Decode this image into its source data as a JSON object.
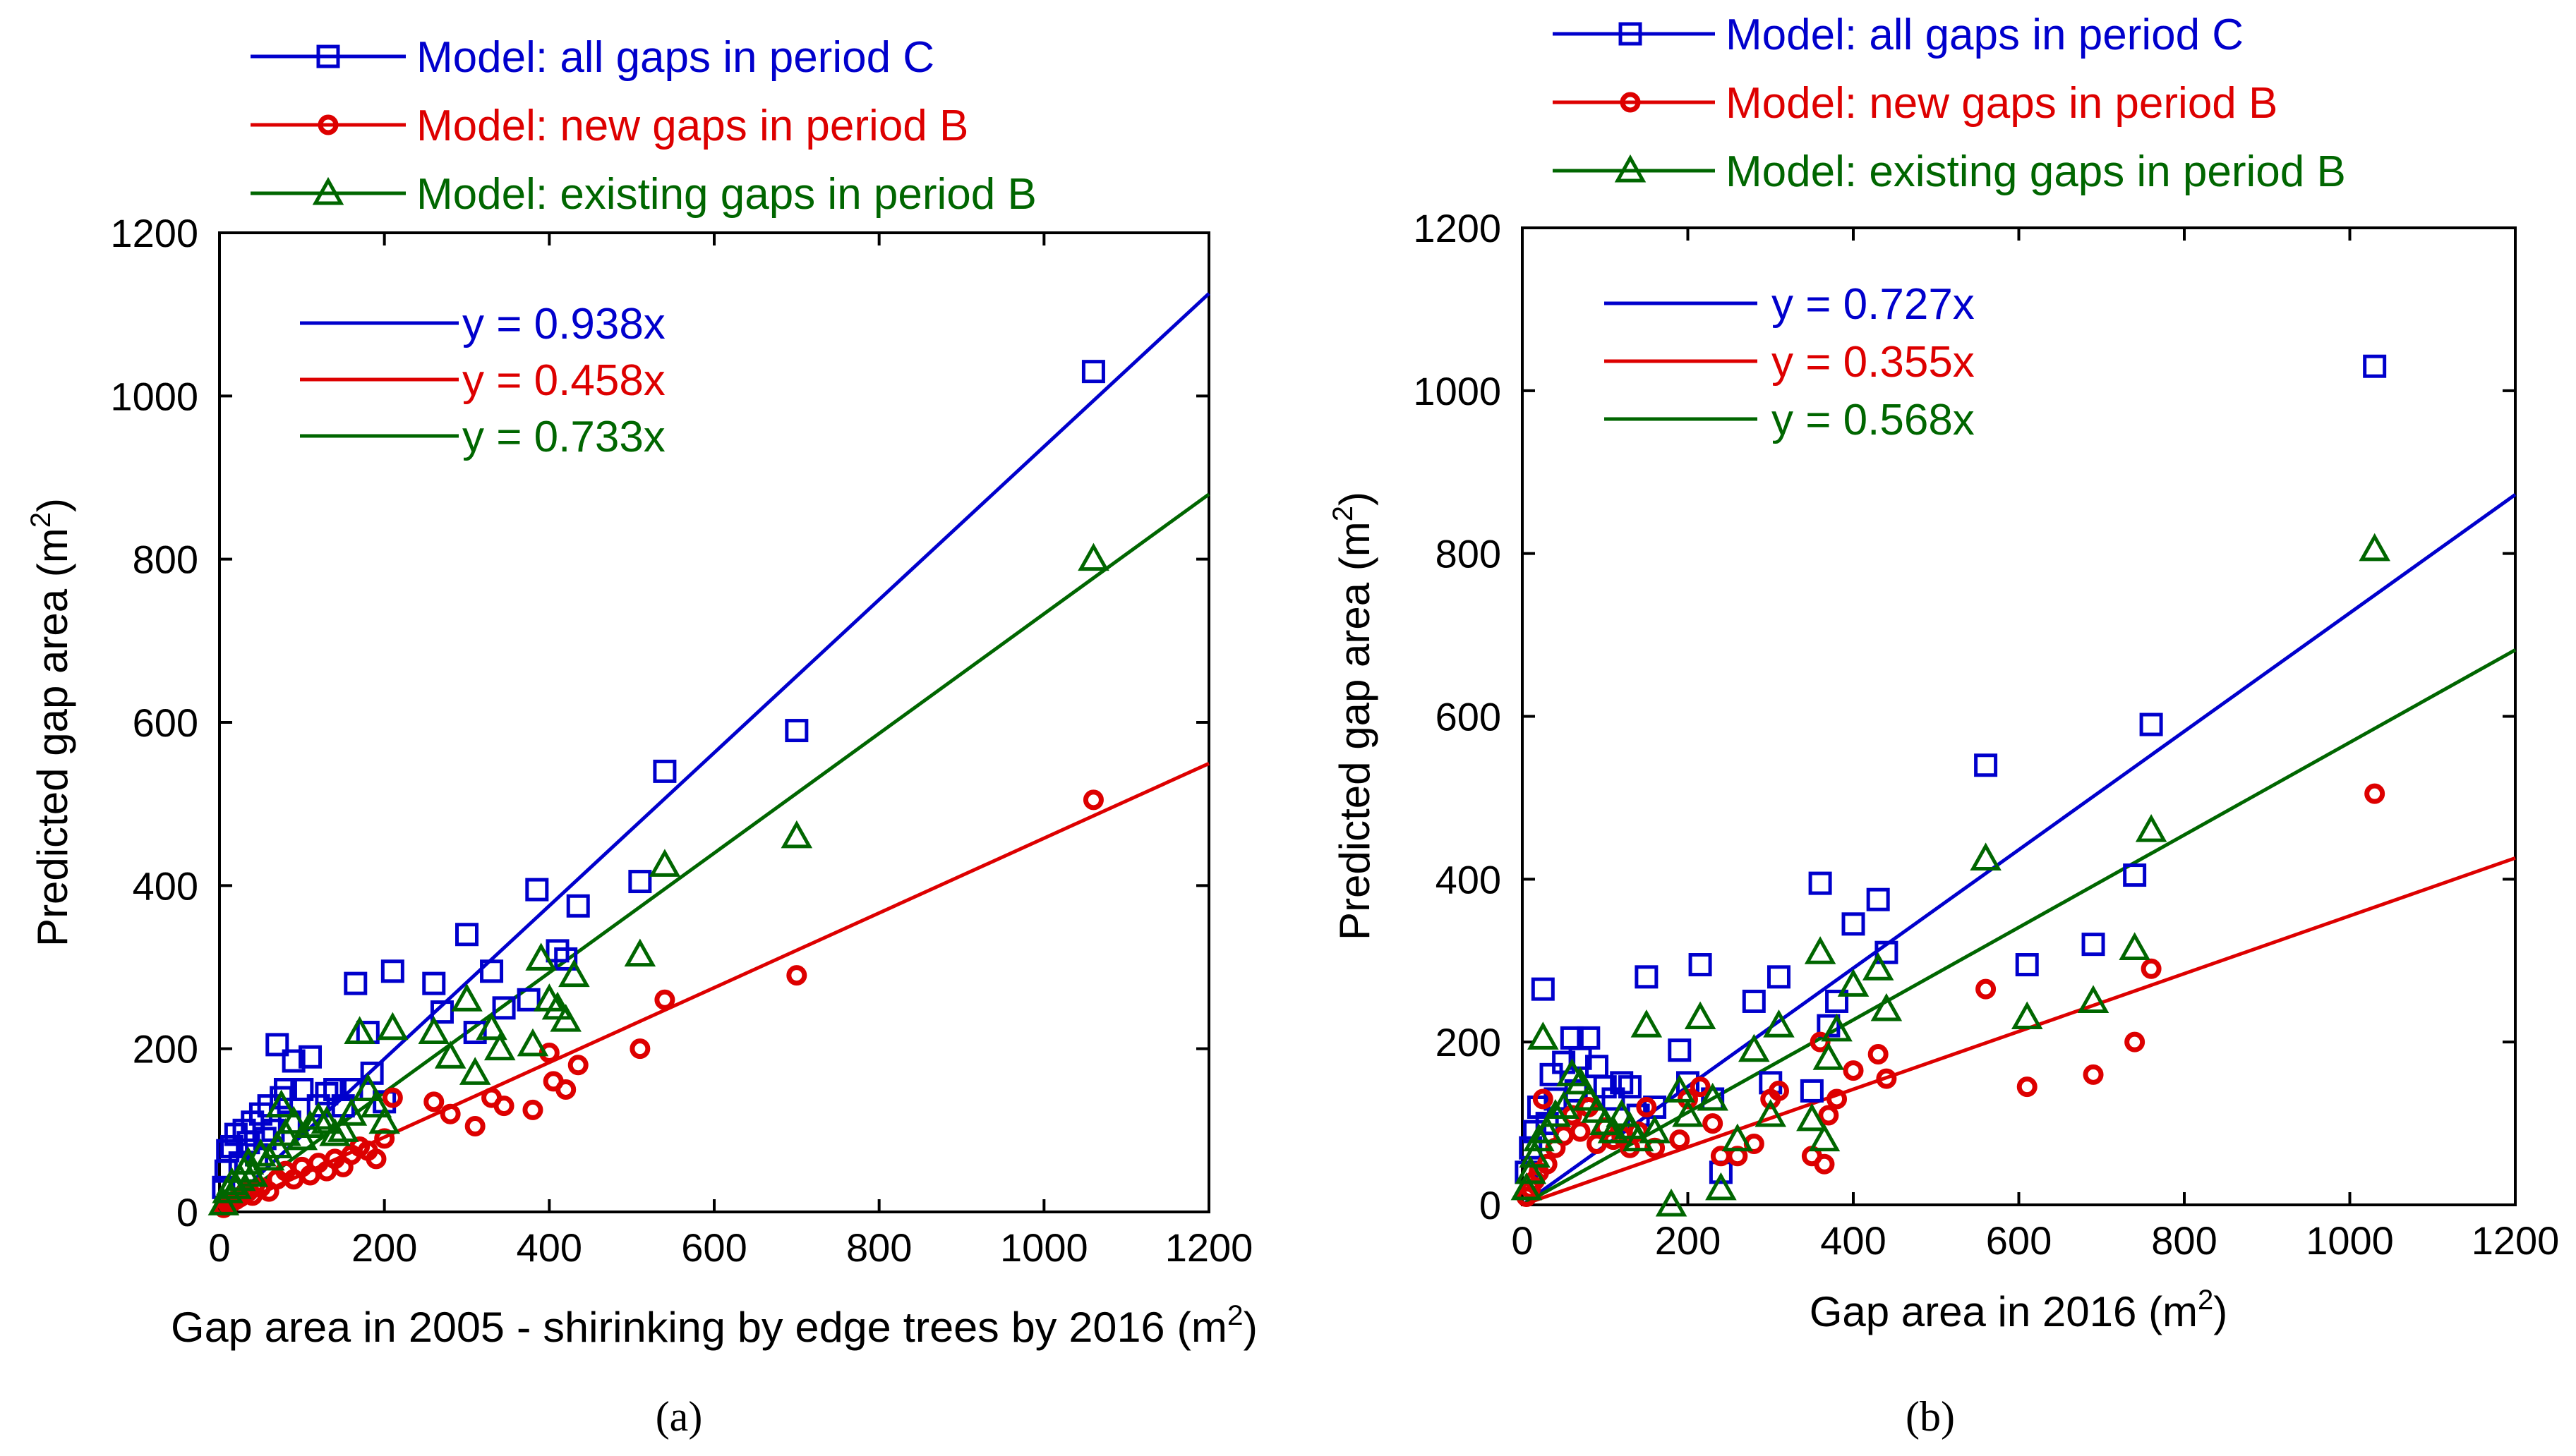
{
  "chart_data": [
    {
      "type": "scatter",
      "panel_label": "(a)",
      "xlabel": "Gap area in 2005 - shirinking by edge trees by 2016 (m",
      "xlabel_sup": "2",
      "xlabel_end": ")",
      "ylabel": "Predicted gap area (m",
      "ylabel_sup": "2",
      "ylabel_end": ")",
      "xlim": [
        0,
        1200
      ],
      "ylim": [
        0,
        1200
      ],
      "xticks": [
        "0",
        "200",
        "400",
        "600",
        "800",
        "1000",
        "1200"
      ],
      "yticks": [
        "0",
        "200",
        "400",
        "600",
        "800",
        "1000",
        "1200"
      ],
      "series": [
        {
          "name": "Model: all gaps in period C",
          "color": "#0000cc",
          "marker": "square",
          "points": [
            [
              5,
              30
            ],
            [
              8,
              50
            ],
            [
              10,
              75
            ],
            [
              15,
              80
            ],
            [
              20,
              95
            ],
            [
              25,
              60
            ],
            [
              30,
              100
            ],
            [
              35,
              85
            ],
            [
              40,
              110
            ],
            [
              45,
              70
            ],
            [
              50,
              120
            ],
            [
              55,
              90
            ],
            [
              60,
              130
            ],
            [
              65,
              100
            ],
            [
              70,
              205
            ],
            [
              75,
              140
            ],
            [
              80,
              150
            ],
            [
              85,
              110
            ],
            [
              90,
              185
            ],
            [
              100,
              150
            ],
            [
              110,
              190
            ],
            [
              120,
              130
            ],
            [
              130,
              145
            ],
            [
              140,
              150
            ],
            [
              150,
              130
            ],
            [
              160,
              150
            ],
            [
              165,
              280
            ],
            [
              180,
              220
            ],
            [
              185,
              170
            ],
            [
              200,
              135
            ],
            [
              210,
              295
            ],
            [
              260,
              280
            ],
            [
              270,
              245
            ],
            [
              300,
              340
            ],
            [
              310,
              220
            ],
            [
              330,
              295
            ],
            [
              345,
              250
            ],
            [
              375,
              260
            ],
            [
              385,
              395
            ],
            [
              410,
              320
            ],
            [
              420,
              310
            ],
            [
              435,
              375
            ],
            [
              510,
              405
            ],
            [
              540,
              540
            ],
            [
              700,
              590
            ],
            [
              1060,
              1030
            ]
          ]
        },
        {
          "name": "Model: new gaps in period B",
          "color": "#dd0000",
          "marker": "circle",
          "points": [
            [
              5,
              5
            ],
            [
              10,
              10
            ],
            [
              15,
              12
            ],
            [
              20,
              15
            ],
            [
              25,
              18
            ],
            [
              30,
              22
            ],
            [
              35,
              25
            ],
            [
              40,
              20
            ],
            [
              50,
              30
            ],
            [
              60,
              25
            ],
            [
              70,
              40
            ],
            [
              80,
              50
            ],
            [
              90,
              40
            ],
            [
              100,
              55
            ],
            [
              110,
              45
            ],
            [
              120,
              60
            ],
            [
              130,
              50
            ],
            [
              140,
              65
            ],
            [
              150,
              55
            ],
            [
              160,
              70
            ],
            [
              170,
              80
            ],
            [
              180,
              75
            ],
            [
              190,
              65
            ],
            [
              200,
              90
            ],
            [
              210,
              140
            ],
            [
              260,
              135
            ],
            [
              280,
              120
            ],
            [
              310,
              105
            ],
            [
              330,
              140
            ],
            [
              345,
              130
            ],
            [
              380,
              125
            ],
            [
              400,
              195
            ],
            [
              405,
              160
            ],
            [
              420,
              150
            ],
            [
              435,
              180
            ],
            [
              510,
              200
            ],
            [
              540,
              260
            ],
            [
              700,
              290
            ],
            [
              1060,
              505
            ]
          ]
        },
        {
          "name": "Model: existing gaps in period B",
          "color": "#006600",
          "marker": "triangle",
          "points": [
            [
              5,
              10
            ],
            [
              10,
              25
            ],
            [
              15,
              35
            ],
            [
              20,
              30
            ],
            [
              25,
              40
            ],
            [
              30,
              50
            ],
            [
              35,
              60
            ],
            [
              40,
              45
            ],
            [
              50,
              70
            ],
            [
              60,
              65
            ],
            [
              70,
              80
            ],
            [
              75,
              130
            ],
            [
              80,
              95
            ],
            [
              90,
              110
            ],
            [
              100,
              90
            ],
            [
              110,
              105
            ],
            [
              120,
              115
            ],
            [
              130,
              110
            ],
            [
              140,
              95
            ],
            [
              150,
              100
            ],
            [
              160,
              120
            ],
            [
              170,
              220
            ],
            [
              180,
              150
            ],
            [
              190,
              130
            ],
            [
              200,
              110
            ],
            [
              210,
              225
            ],
            [
              260,
              220
            ],
            [
              280,
              190
            ],
            [
              300,
              260
            ],
            [
              310,
              170
            ],
            [
              330,
              225
            ],
            [
              340,
              200
            ],
            [
              380,
              205
            ],
            [
              390,
              310
            ],
            [
              400,
              260
            ],
            [
              410,
              250
            ],
            [
              420,
              235
            ],
            [
              430,
              290
            ],
            [
              510,
              315
            ],
            [
              540,
              425
            ],
            [
              700,
              460
            ],
            [
              1060,
              800
            ]
          ]
        }
      ],
      "fits": [
        {
          "label": "y = 0.938x",
          "slope": 0.938,
          "color": "#0000cc"
        },
        {
          "label": "y = 0.458x",
          "slope": 0.458,
          "color": "#dd0000"
        },
        {
          "label": "y = 0.733x",
          "slope": 0.733,
          "color": "#006600"
        }
      ]
    },
    {
      "type": "scatter",
      "panel_label": "(b)",
      "xlabel": "Gap area in 2016 (m",
      "xlabel_sup": "2",
      "xlabel_end": ")",
      "ylabel": "Predicted gap area (m",
      "ylabel_sup": "2",
      "ylabel_end": ")",
      "xlim": [
        0,
        1200
      ],
      "ylim": [
        0,
        1200
      ],
      "xticks": [
        "0",
        "200",
        "400",
        "600",
        "800",
        "1000",
        "1200"
      ],
      "yticks": [
        "0",
        "200",
        "400",
        "600",
        "800",
        "1000",
        "1200"
      ],
      "series": [
        {
          "name": "Model: all gaps in period C",
          "color": "#0000cc",
          "marker": "square",
          "points": [
            [
              5,
              40
            ],
            [
              10,
              70
            ],
            [
              15,
              90
            ],
            [
              20,
              120
            ],
            [
              25,
              265
            ],
            [
              30,
              100
            ],
            [
              35,
              160
            ],
            [
              40,
              130
            ],
            [
              50,
              175
            ],
            [
              60,
              205
            ],
            [
              65,
              140
            ],
            [
              70,
              180
            ],
            [
              80,
              205
            ],
            [
              90,
              170
            ],
            [
              100,
              145
            ],
            [
              110,
              130
            ],
            [
              120,
              150
            ],
            [
              130,
              145
            ],
            [
              140,
              110
            ],
            [
              150,
              280
            ],
            [
              160,
              120
            ],
            [
              190,
              190
            ],
            [
              200,
              150
            ],
            [
              215,
              295
            ],
            [
              230,
              130
            ],
            [
              240,
              40
            ],
            [
              280,
              250
            ],
            [
              300,
              150
            ],
            [
              310,
              280
            ],
            [
              350,
              140
            ],
            [
              360,
              395
            ],
            [
              370,
              220
            ],
            [
              380,
              250
            ],
            [
              400,
              345
            ],
            [
              430,
              375
            ],
            [
              440,
              310
            ],
            [
              560,
              540
            ],
            [
              610,
              295
            ],
            [
              690,
              320
            ],
            [
              740,
              405
            ],
            [
              760,
              590
            ],
            [
              1030,
              1030
            ]
          ]
        },
        {
          "name": "Model: new gaps in period B",
          "color": "#dd0000",
          "marker": "circle",
          "points": [
            [
              5,
              10
            ],
            [
              10,
              20
            ],
            [
              15,
              30
            ],
            [
              20,
              40
            ],
            [
              25,
              130
            ],
            [
              30,
              50
            ],
            [
              40,
              70
            ],
            [
              50,
              85
            ],
            [
              60,
              110
            ],
            [
              70,
              90
            ],
            [
              80,
              120
            ],
            [
              90,
              75
            ],
            [
              100,
              95
            ],
            [
              110,
              80
            ],
            [
              120,
              85
            ],
            [
              130,
              70
            ],
            [
              140,
              90
            ],
            [
              150,
              120
            ],
            [
              160,
              70
            ],
            [
              190,
              80
            ],
            [
              200,
              130
            ],
            [
              215,
              145
            ],
            [
              230,
              100
            ],
            [
              240,
              60
            ],
            [
              260,
              60
            ],
            [
              280,
              75
            ],
            [
              300,
              130
            ],
            [
              310,
              140
            ],
            [
              350,
              60
            ],
            [
              360,
              200
            ],
            [
              365,
              50
            ],
            [
              370,
              110
            ],
            [
              380,
              130
            ],
            [
              400,
              165
            ],
            [
              430,
              185
            ],
            [
              440,
              155
            ],
            [
              560,
              265
            ],
            [
              610,
              145
            ],
            [
              690,
              160
            ],
            [
              740,
              200
            ],
            [
              760,
              290
            ],
            [
              1030,
              505
            ]
          ]
        },
        {
          "name": "Model: existing gaps in period B",
          "color": "#006600",
          "marker": "triangle",
          "points": [
            [
              5,
              20
            ],
            [
              10,
              40
            ],
            [
              15,
              60
            ],
            [
              20,
              80
            ],
            [
              25,
              205
            ],
            [
              30,
              90
            ],
            [
              40,
              110
            ],
            [
              50,
              120
            ],
            [
              60,
              160
            ],
            [
              70,
              150
            ],
            [
              80,
              130
            ],
            [
              90,
              115
            ],
            [
              100,
              100
            ],
            [
              110,
              90
            ],
            [
              120,
              110
            ],
            [
              130,
              95
            ],
            [
              140,
              80
            ],
            [
              150,
              220
            ],
            [
              160,
              90
            ],
            [
              180,
              0
            ],
            [
              190,
              140
            ],
            [
              200,
              110
            ],
            [
              215,
              230
            ],
            [
              230,
              130
            ],
            [
              240,
              20
            ],
            [
              260,
              80
            ],
            [
              280,
              190
            ],
            [
              300,
              110
            ],
            [
              310,
              220
            ],
            [
              350,
              105
            ],
            [
              360,
              310
            ],
            [
              365,
              80
            ],
            [
              370,
              180
            ],
            [
              380,
              215
            ],
            [
              400,
              270
            ],
            [
              430,
              290
            ],
            [
              440,
              240
            ],
            [
              560,
              425
            ],
            [
              610,
              230
            ],
            [
              690,
              250
            ],
            [
              740,
              315
            ],
            [
              760,
              460
            ],
            [
              1030,
              805
            ]
          ]
        }
      ],
      "fits": [
        {
          "label": "y = 0.727x",
          "slope": 0.727,
          "color": "#0000cc"
        },
        {
          "label": "y = 0.355x",
          "slope": 0.355,
          "color": "#dd0000"
        },
        {
          "label": "y = 0.568x",
          "slope": 0.568,
          "color": "#006600"
        }
      ]
    }
  ]
}
